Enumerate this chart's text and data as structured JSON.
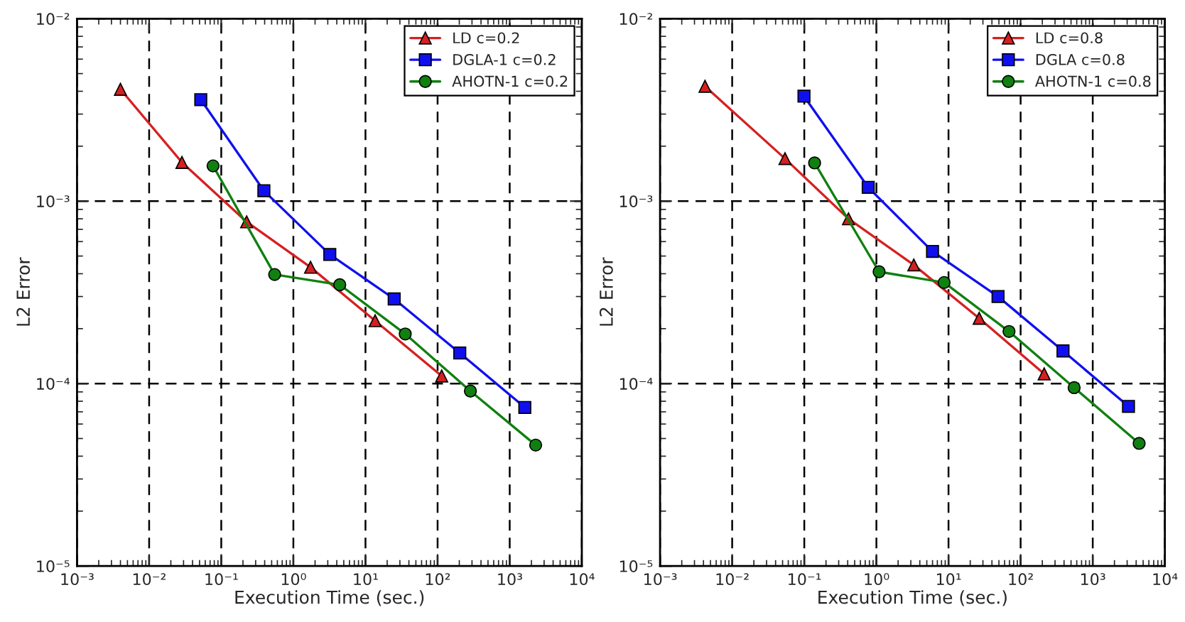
{
  "chart_data": [
    {
      "type": "line",
      "xlabel": "Execution Time (sec.)",
      "ylabel": "L2 Error",
      "log": "xy",
      "grid": true,
      "legend": "top right",
      "line_style": "solid",
      "xlim": [
        0.001,
        10000
      ],
      "ylim": [
        1e-05,
        0.01
      ],
      "xticks": [
        {
          "value": 0.001,
          "label": "10⁻³"
        },
        {
          "value": 0.01,
          "label": "10⁻²"
        },
        {
          "value": 0.1,
          "label": "10⁻¹"
        },
        {
          "value": 1,
          "label": "10⁰"
        },
        {
          "value": 10,
          "label": "10¹"
        },
        {
          "value": 100,
          "label": "10²"
        },
        {
          "value": 1000,
          "label": "10³"
        },
        {
          "value": 10000,
          "label": "10⁴"
        }
      ],
      "yticks": [
        {
          "value": 1e-05,
          "label": "10⁻⁵"
        },
        {
          "value": 0.0001,
          "label": "10⁻⁴"
        },
        {
          "value": 0.001,
          "label": "10⁻³"
        },
        {
          "value": 0.01,
          "label": "10⁻²"
        }
      ],
      "series": [
        {
          "name": "LD c=0.2",
          "color": "#d62020",
          "marker": "triangle",
          "x": [
            0.004,
            0.0285,
            0.225,
            1.73,
            13.6,
            114
          ],
          "values": [
            0.0041,
            0.00163,
            0.00077,
            0.000434,
            0.000221,
            0.00011
          ]
        },
        {
          "name": "DGLA-1 c=0.2",
          "color": "#1010ee",
          "marker": "square",
          "x": [
            0.052,
            0.39,
            3.2,
            25,
            203,
            1620
          ],
          "values": [
            0.0036,
            0.00114,
            0.00051,
            0.000291,
            0.000147,
            7.4e-05
          ]
        },
        {
          "name": "AHOTN-1 c=0.2",
          "color": "#108010",
          "marker": "circle",
          "x": [
            0.077,
            0.55,
            4.4,
            35.6,
            285,
            2290
          ],
          "values": [
            0.00156,
            0.000396,
            0.000348,
            0.000187,
            9.1e-05,
            4.6e-05
          ]
        }
      ]
    },
    {
      "type": "line",
      "xlabel": "Execution Time (sec.)",
      "ylabel": "L2 Error",
      "log": "xy",
      "grid": true,
      "legend": "top right",
      "line_style": "solid",
      "xlim": [
        0.001,
        10000
      ],
      "ylim": [
        1e-05,
        0.01
      ],
      "xticks": [
        {
          "value": 0.001,
          "label": "10⁻³"
        },
        {
          "value": 0.01,
          "label": "10⁻²"
        },
        {
          "value": 0.1,
          "label": "10⁻¹"
        },
        {
          "value": 1,
          "label": "10⁰"
        },
        {
          "value": 10,
          "label": "10¹"
        },
        {
          "value": 100,
          "label": "10²"
        },
        {
          "value": 1000,
          "label": "10³"
        },
        {
          "value": 10000,
          "label": "10⁴"
        }
      ],
      "yticks": [
        {
          "value": 1e-05,
          "label": "10⁻⁵"
        },
        {
          "value": 0.0001,
          "label": "10⁻⁴"
        },
        {
          "value": 0.001,
          "label": "10⁻³"
        },
        {
          "value": 0.01,
          "label": "10⁻²"
        }
      ],
      "series": [
        {
          "name": "LD c=0.8",
          "color": "#d62020",
          "marker": "triangle",
          "x": [
            0.0042,
            0.054,
            0.41,
            3.3,
            26.6,
            212
          ],
          "values": [
            0.00426,
            0.00171,
            0.0008,
            0.000447,
            0.000228,
            0.000113
          ]
        },
        {
          "name": "DGLA c=0.8",
          "color": "#1010ee",
          "marker": "square",
          "x": [
            0.099,
            0.77,
            6.0,
            48.6,
            387,
            3130
          ],
          "values": [
            0.00376,
            0.00119,
            0.00053,
            0.0003,
            0.000151,
            7.5e-05
          ]
        },
        {
          "name": "AHOTN-1 c=0.8",
          "color": "#108010",
          "marker": "circle",
          "x": [
            0.139,
            1.09,
            8.7,
            69,
            552,
            4400
          ],
          "values": [
            0.00162,
            0.00041,
            0.000358,
            0.000193,
            9.5e-05,
            4.7e-05
          ]
        }
      ]
    }
  ]
}
